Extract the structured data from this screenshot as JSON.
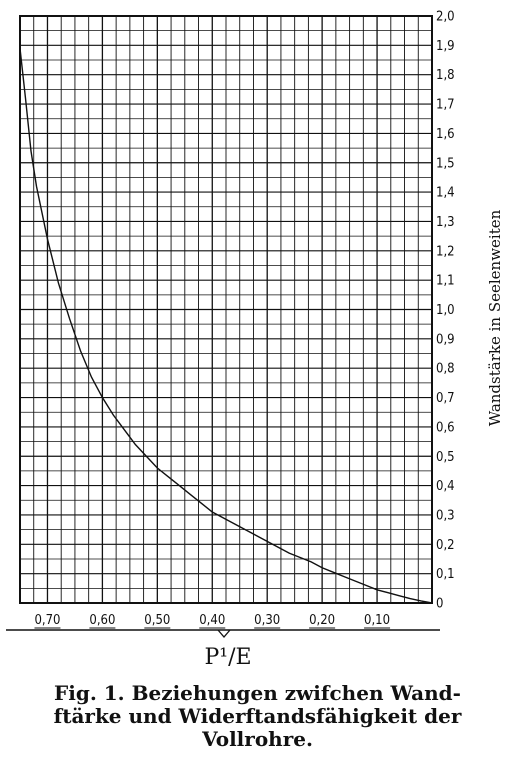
{
  "chart_data": {
    "type": "line",
    "title": "",
    "xlabel": "P¹/E",
    "ylabel": "Wandstärke in Seelenweiten",
    "xlim": [
      0.75,
      0.0
    ],
    "ylim": [
      0,
      2.0
    ],
    "x_ticks": [
      "0,70",
      "0,60",
      "0,50",
      "0,40",
      "0,30",
      "0,20",
      "0,10"
    ],
    "x_tick_values": [
      0.7,
      0.6,
      0.5,
      0.4,
      0.3,
      0.2,
      0.1
    ],
    "y_ticks": [
      "0",
      "0,1",
      "0,2",
      "0,3",
      "0,4",
      "0,5",
      "0,6",
      "0,7",
      "0,8",
      "0,9",
      "1,0",
      "1,1",
      "1,2",
      "1,3",
      "1,4",
      "1,5",
      "1,6",
      "1,7",
      "1,8",
      "1,9",
      "2,0"
    ],
    "y_tick_values": [
      0,
      0.1,
      0.2,
      0.3,
      0.4,
      0.5,
      0.6,
      0.7,
      0.8,
      0.9,
      1.0,
      1.1,
      1.2,
      1.3,
      1.4,
      1.5,
      1.6,
      1.7,
      1.8,
      1.9,
      2.0
    ],
    "grid": true,
    "series": [
      {
        "x": [
          0.75,
          0.74,
          0.73,
          0.72,
          0.7,
          0.68,
          0.66,
          0.64,
          0.62,
          0.6,
          0.58,
          0.56,
          0.54,
          0.52,
          0.5,
          0.48,
          0.46,
          0.44,
          0.42,
          0.4,
          0.38,
          0.36,
          0.34,
          0.32,
          0.3,
          0.28,
          0.26,
          0.24,
          0.22,
          0.2,
          0.18,
          0.16,
          0.14,
          0.12,
          0.1,
          0.08,
          0.06,
          0.04,
          0.02,
          0.0
        ],
        "values": [
          1.89,
          1.72,
          1.54,
          1.42,
          1.24,
          1.09,
          0.97,
          0.86,
          0.77,
          0.7,
          0.64,
          0.59,
          0.54,
          0.5,
          0.46,
          0.43,
          0.4,
          0.37,
          0.34,
          0.31,
          0.29,
          0.27,
          0.25,
          0.23,
          0.21,
          0.19,
          0.17,
          0.155,
          0.14,
          0.12,
          0.105,
          0.09,
          0.075,
          0.06,
          0.045,
          0.035,
          0.025,
          0.015,
          0.007,
          0.0
        ]
      }
    ]
  },
  "caption": {
    "line1": "Fig. 1.  Beziehungen zwifchen Wand-",
    "line2": "ftärke  und Widerftandsfähigkeit der",
    "line3": "Vollrohre."
  },
  "colors": {
    "ink": "#111111",
    "paper": "#ffffff"
  }
}
